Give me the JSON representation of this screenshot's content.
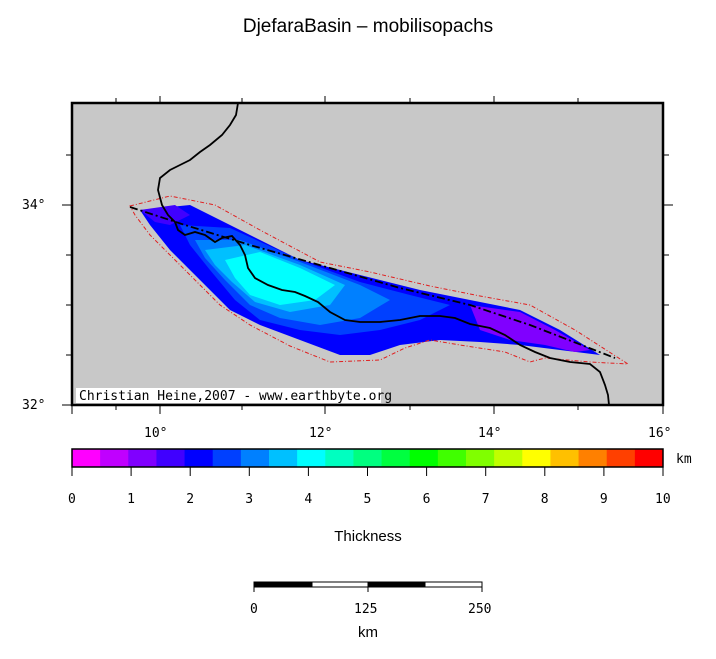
{
  "title": "DjefaraBasin – mobilisopachs",
  "map": {
    "lat_labels": [
      "34°",
      "32°"
    ],
    "lon_labels": [
      "10°",
      "12°",
      "14°",
      "16°"
    ],
    "credit": "Christian Heine,2007 - www.earthbyte.org",
    "land_color": "#c8c8c8"
  },
  "colorbar": {
    "unit": "km",
    "title": "Thickness",
    "ticks": [
      "0",
      "1",
      "2",
      "3",
      "4",
      "5",
      "6",
      "7",
      "8",
      "9",
      "10"
    ],
    "colors": [
      "#ff00ff",
      "#c000ff",
      "#8000ff",
      "#4000ff",
      "#0000ff",
      "#0040ff",
      "#0080ff",
      "#00c0ff",
      "#00ffff",
      "#00ffc0",
      "#00ff80",
      "#00ff40",
      "#00ff00",
      "#40ff00",
      "#80ff00",
      "#c0ff00",
      "#ffff00",
      "#ffc000",
      "#ff8000",
      "#ff4000",
      "#ff0000"
    ]
  },
  "scalebar": {
    "labels": [
      "0",
      "125",
      "250"
    ],
    "unit": "km"
  }
}
